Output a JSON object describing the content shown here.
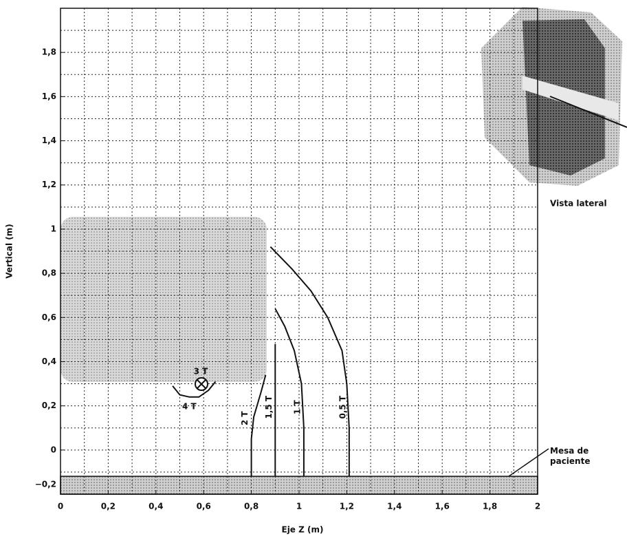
{
  "chart_data": {
    "type": "line",
    "x_label": "Eje Z (m)",
    "y_label": "Vertical (m)",
    "xlim": [
      0,
      2
    ],
    "ylim": [
      -0.2,
      2.0
    ],
    "xticks": [
      0,
      {
        "value": 0.2,
        "label": "0,2"
      },
      {
        "value": 0.4,
        "label": "0,4"
      },
      {
        "value": 0.6,
        "label": "0,6"
      },
      {
        "value": 0.8,
        "label": "0,8"
      },
      1,
      {
        "value": 1.2,
        "label": "1,2"
      },
      {
        "value": 1.4,
        "label": "1,4"
      },
      {
        "value": 1.6,
        "label": "1,6"
      },
      {
        "value": 1.8,
        "label": "1,8"
      },
      2
    ],
    "yticks": [
      {
        "value": -0.2,
        "label": "−0,2"
      },
      0,
      {
        "value": 0.2,
        "label": "0,2"
      },
      {
        "value": 0.4,
        "label": "0,4"
      },
      {
        "value": 0.6,
        "label": "0,6"
      },
      {
        "value": 0.8,
        "label": "0,8"
      },
      1,
      {
        "value": 1.2,
        "label": "1,2"
      },
      {
        "value": 1.4,
        "label": "1,4"
      },
      {
        "value": 1.6,
        "label": "1,6"
      },
      {
        "value": 1.8,
        "label": "1,8"
      }
    ],
    "x_minor_ticks": [
      0.1,
      0.3,
      0.5,
      0.7,
      0.9,
      1.1,
      1.3,
      1.5,
      1.7,
      1.9
    ],
    "y_minor_ticks": [
      -0.1,
      0.1,
      0.3,
      0.5,
      0.7,
      0.9,
      1.1,
      1.3,
      1.5,
      1.7,
      1.9
    ],
    "grid": true,
    "series": [
      {
        "name": "0,5 T",
        "color": "#111111",
        "x": [
          1.21,
          1.21,
          1.2,
          1.18,
          1.12,
          1.05,
          0.97,
          0.88
        ],
        "values": [
          -0.12,
          0.1,
          0.3,
          0.45,
          0.6,
          0.72,
          0.82,
          0.92
        ]
      },
      {
        "name": "1 T",
        "color": "#111111",
        "x": [
          1.02,
          1.02,
          1.01,
          0.98,
          0.94,
          0.9
        ],
        "values": [
          -0.12,
          0.1,
          0.3,
          0.45,
          0.56,
          0.64
        ]
      },
      {
        "name": "1,5 T",
        "color": "#111111",
        "x": [
          0.9,
          0.9,
          0.9,
          0.9
        ],
        "values": [
          -0.12,
          0.1,
          0.3,
          0.48
        ]
      },
      {
        "name": "2 T",
        "color": "#111111",
        "x": [
          0.8,
          0.8,
          0.81,
          0.84,
          0.86
        ],
        "values": [
          -0.12,
          0.05,
          0.15,
          0.26,
          0.34
        ]
      },
      {
        "name": "4 T",
        "color": "#111111",
        "x": [
          0.47,
          0.5,
          0.54,
          0.58,
          0.62,
          0.65
        ],
        "values": [
          0.29,
          0.25,
          0.24,
          0.24,
          0.27,
          0.31
        ]
      }
    ],
    "extra_labels": [
      "3 T"
    ],
    "table_label": "Mesa de paciente",
    "inset_label": "Vista lateral"
  }
}
